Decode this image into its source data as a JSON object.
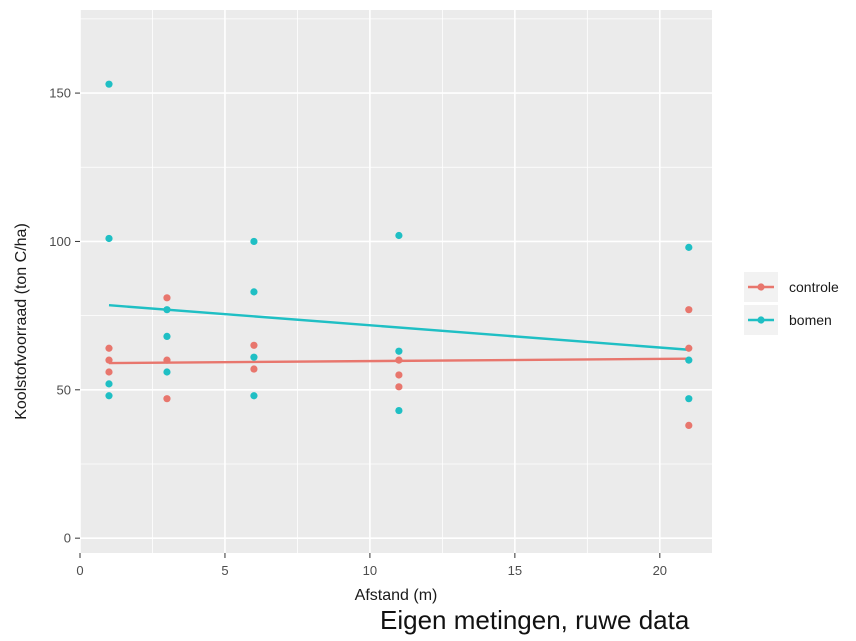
{
  "caption": "Eigen metingen, ruwe data",
  "chart_data": {
    "type": "scatter",
    "xlabel": "Afstand (m)",
    "ylabel": "Koolstofvoorraad (ton C/ha)",
    "xlim": [
      0,
      21.8
    ],
    "ylim": [
      -5,
      178
    ],
    "xticks": [
      0,
      5,
      10,
      15,
      20
    ],
    "yticks": [
      0,
      50,
      100,
      150
    ],
    "grid": true,
    "legend_position": "right",
    "panel_color": "#ebebeb",
    "series": [
      {
        "name": "controle",
        "color": "#e8766d",
        "points": [
          {
            "x": 1,
            "y": 64
          },
          {
            "x": 1,
            "y": 60
          },
          {
            "x": 1,
            "y": 56
          },
          {
            "x": 3,
            "y": 81
          },
          {
            "x": 3,
            "y": 60
          },
          {
            "x": 3,
            "y": 47
          },
          {
            "x": 6,
            "y": 65
          },
          {
            "x": 6,
            "y": 57
          },
          {
            "x": 11,
            "y": 60
          },
          {
            "x": 11,
            "y": 55
          },
          {
            "x": 11,
            "y": 51
          },
          {
            "x": 21,
            "y": 77
          },
          {
            "x": 21,
            "y": 64
          },
          {
            "x": 21,
            "y": 38
          }
        ],
        "trend": [
          {
            "x": 1,
            "y": 59
          },
          {
            "x": 21,
            "y": 60.5
          }
        ]
      },
      {
        "name": "bomen",
        "color": "#1fbfc4",
        "points": [
          {
            "x": 1,
            "y": 153
          },
          {
            "x": 1,
            "y": 101
          },
          {
            "x": 1,
            "y": 52
          },
          {
            "x": 1,
            "y": 48
          },
          {
            "x": 3,
            "y": 77
          },
          {
            "x": 3,
            "y": 68
          },
          {
            "x": 3,
            "y": 56
          },
          {
            "x": 6,
            "y": 100
          },
          {
            "x": 6,
            "y": 83
          },
          {
            "x": 6,
            "y": 61
          },
          {
            "x": 6,
            "y": 48
          },
          {
            "x": 11,
            "y": 102
          },
          {
            "x": 11,
            "y": 63
          },
          {
            "x": 11,
            "y": 43
          },
          {
            "x": 21,
            "y": 98
          },
          {
            "x": 21,
            "y": 60
          },
          {
            "x": 21,
            "y": 47
          }
        ],
        "trend": [
          {
            "x": 1,
            "y": 78.5
          },
          {
            "x": 21,
            "y": 63.5
          }
        ]
      }
    ],
    "x_tick_labels": [
      "0",
      "5",
      "10",
      "15",
      "20"
    ],
    "y_tick_labels": [
      "0",
      "50",
      "100",
      "150"
    ]
  }
}
